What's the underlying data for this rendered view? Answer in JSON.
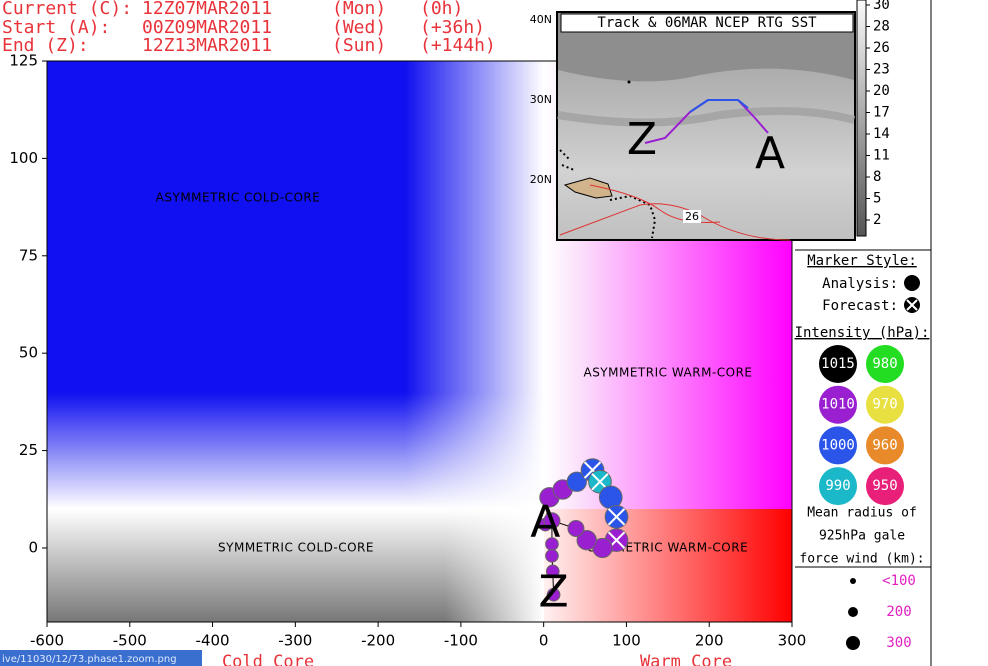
{
  "header": {
    "rows": [
      [
        "Current (C):",
        "12Z07MAR2011",
        "(Mon)",
        "(0h)"
      ],
      [
        "Start (A):",
        "00Z09MAR2011",
        "(Wed)",
        "(+36h)"
      ],
      [
        "End (Z):",
        "12Z13MAR2011",
        "(Sun)",
        "(+144h)"
      ]
    ]
  },
  "chart_data": {
    "type": "scatter",
    "xlim": [
      -600,
      300
    ],
    "ylim": [
      -19,
      125
    ],
    "xticks": [
      -600,
      -500,
      -400,
      -300,
      -200,
      -100,
      0,
      100,
      200,
      300
    ],
    "yticks": [
      125,
      100,
      75,
      50,
      25,
      0
    ],
    "x_labels": [
      "Cold Core",
      "Warm Core"
    ],
    "regions": [
      "ASYMMETRIC COLD-CORE",
      "ASYMMETRIC WARM-CORE",
      "SYMMETRIC COLD-CORE",
      "SYMMETRIC WARM-CORE"
    ],
    "start_label": "A",
    "end_label": "Z",
    "series": [
      {
        "x": [
          2,
          7,
          23,
          40,
          59,
          68,
          81,
          88,
          88,
          71,
          52,
          39,
          10,
          10,
          10,
          11,
          12
        ],
        "values": [
          6,
          13,
          15,
          17,
          20,
          17,
          13,
          8,
          2,
          0,
          2,
          5,
          7,
          1,
          -2,
          -6,
          -12
        ],
        "sizes": [
          100,
          200,
          200,
          200,
          250,
          250,
          250,
          250,
          250,
          200,
          200,
          150,
          150,
          100,
          100,
          100,
          100
        ],
        "colors": [
          "#9a1fd0",
          "#9a1fd0",
          "#9a1fd0",
          "#2a55e8",
          "#2a55e8",
          "#1ab8c8",
          "#2a55e8",
          "#2a55e8",
          "#9a1fd0",
          "#9a1fd0",
          "#9a1fd0",
          "#9a1fd0",
          "#9a1fd0",
          "#9a1fd0",
          "#9a1fd0",
          "#9a1fd0",
          "#9a1fd0"
        ],
        "forecast": [
          false,
          false,
          false,
          false,
          true,
          true,
          false,
          true,
          true,
          false,
          false,
          false,
          false,
          false,
          false,
          false,
          false
        ]
      }
    ]
  },
  "inset": {
    "title": "Track & 06MAR NCEP RTG SST",
    "lat_labels": [
      "40N",
      "30N",
      "20N"
    ],
    "contour_label": "26",
    "start_label": "A",
    "end_label": "Z",
    "colorbar": [
      30,
      28,
      26,
      23,
      20,
      17,
      14,
      11,
      8,
      5,
      2
    ]
  },
  "legend": {
    "marker_title": "Marker Style:",
    "analysis": "Analysis:",
    "forecast": "Forecast:",
    "intensity_title": "Intensity (hPa):",
    "intensity": [
      {
        "label": "1015",
        "color": "#000000"
      },
      {
        "label": "980",
        "color": "#22dd22"
      },
      {
        "label": "1010",
        "color": "#9a1fd0"
      },
      {
        "label": "970",
        "color": "#e8e040"
      },
      {
        "label": "1000",
        "color": "#2a55e8"
      },
      {
        "label": "960",
        "color": "#e88a2a"
      },
      {
        "label": "990",
        "color": "#1ab8c8"
      },
      {
        "label": "950",
        "color": "#e8207a"
      }
    ],
    "radius_title": [
      "Mean radius of",
      "925hPa gale",
      "force wind (km):"
    ],
    "radius": [
      "<100",
      "200",
      "300"
    ]
  },
  "status": "ive/11030/12/73.phase1.zoom.png"
}
